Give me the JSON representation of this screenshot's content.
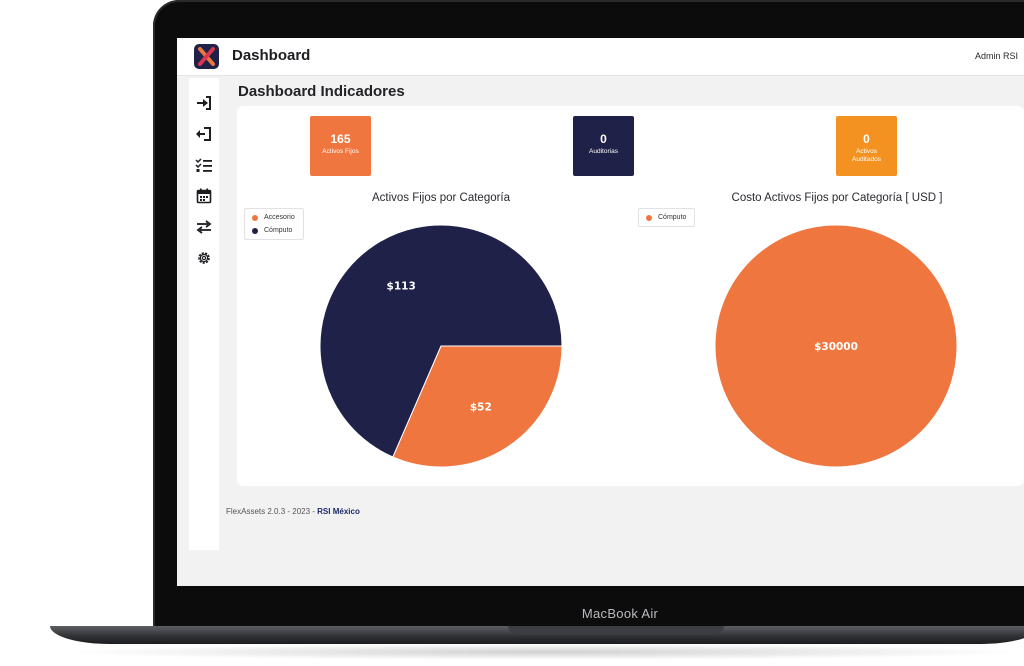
{
  "device": {
    "label": "MacBook Air"
  },
  "app": {
    "title": "Dashboard",
    "user": "Admin RSI"
  },
  "sidebar": {
    "items": [
      {
        "icon": "sign-in-icon"
      },
      {
        "icon": "sign-out-icon"
      },
      {
        "icon": "task-list-icon"
      },
      {
        "icon": "calendar-icon"
      },
      {
        "icon": "transfer-icon"
      },
      {
        "icon": "gear-icon"
      }
    ]
  },
  "page": {
    "title": "Dashboard Indicadores"
  },
  "kpis": [
    {
      "value": "165",
      "label": "Activos Fijos",
      "color": "#ef763f"
    },
    {
      "value": "0",
      "label": "Auditorias",
      "color": "#1f2148"
    },
    {
      "value": "0",
      "label": "Activos Auditados",
      "color": "#f39221"
    }
  ],
  "colors": {
    "orange": "#ef763f",
    "navy": "#1f2148"
  },
  "chart_data": [
    {
      "type": "pie",
      "title": "Activos Fijos por Categoría",
      "labels": [
        "Accesorio",
        "Cómputo"
      ],
      "values": [
        52,
        113
      ],
      "display_labels": [
        "$52",
        "$113"
      ],
      "colors": [
        "#ef763f",
        "#1f2148"
      ],
      "legend_position": "top-left"
    },
    {
      "type": "pie",
      "title": "Costo Activos Fijos por Categoría [ USD ]",
      "labels": [
        "Cómputo"
      ],
      "values": [
        30000
      ],
      "display_labels": [
        "$30000"
      ],
      "colors": [
        "#ef763f"
      ],
      "legend_position": "top-left"
    }
  ],
  "footer": {
    "text": "FlexAssets 2.0.3 - 2023 - ",
    "link": "RSI México"
  }
}
